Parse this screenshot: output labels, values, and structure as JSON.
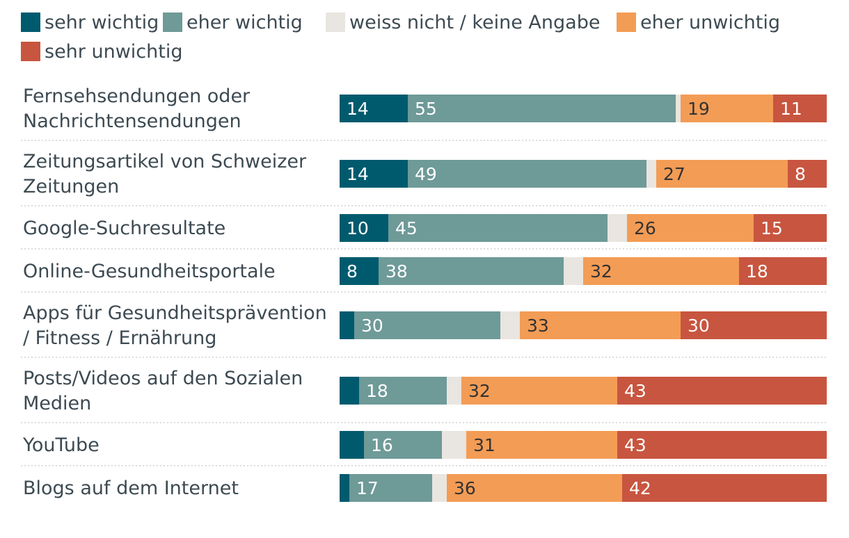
{
  "chart_data": {
    "type": "bar",
    "orientation": "horizontal",
    "stacked": true,
    "title": "",
    "xlabel": "",
    "ylabel": "",
    "xlim": [
      0,
      100
    ],
    "legend_position": "top-left",
    "grid": false,
    "categories": [
      [
        "Fernsehsendungen oder",
        "Nachrichtensendungen"
      ],
      [
        "Zeitungsartikel von Schweizer",
        "Zeitungen"
      ],
      [
        "Google-Suchresultate"
      ],
      [
        "Online-Gesundheitsportale"
      ],
      [
        "Apps für Gesundheitsprävention",
        "/ Fitness / Ernährung"
      ],
      [
        "Posts/Videos auf den Sozialen",
        "Medien"
      ],
      [
        "YouTube"
      ],
      [
        "Blogs auf dem Internet"
      ]
    ],
    "series": [
      {
        "name": "sehr wichtig",
        "color": "#005a6e",
        "values": [
          14,
          14,
          10,
          8,
          3,
          4,
          5,
          2
        ]
      },
      {
        "name": "eher wichtig",
        "color": "#6e9a98",
        "values": [
          55,
          49,
          45,
          38,
          30,
          18,
          16,
          17
        ]
      },
      {
        "name": "weiss nicht / keine Angabe",
        "color": "#e9e5e0",
        "values": [
          1,
          2,
          4,
          4,
          4,
          3,
          5,
          3
        ]
      },
      {
        "name": "eher unwichtig",
        "color": "#f39c55",
        "values": [
          19,
          27,
          26,
          32,
          33,
          32,
          31,
          36
        ]
      },
      {
        "name": "sehr unwichtig",
        "color": "#c8553f",
        "values": [
          11,
          8,
          15,
          18,
          30,
          43,
          43,
          42
        ]
      }
    ],
    "label_threshold": 8
  }
}
